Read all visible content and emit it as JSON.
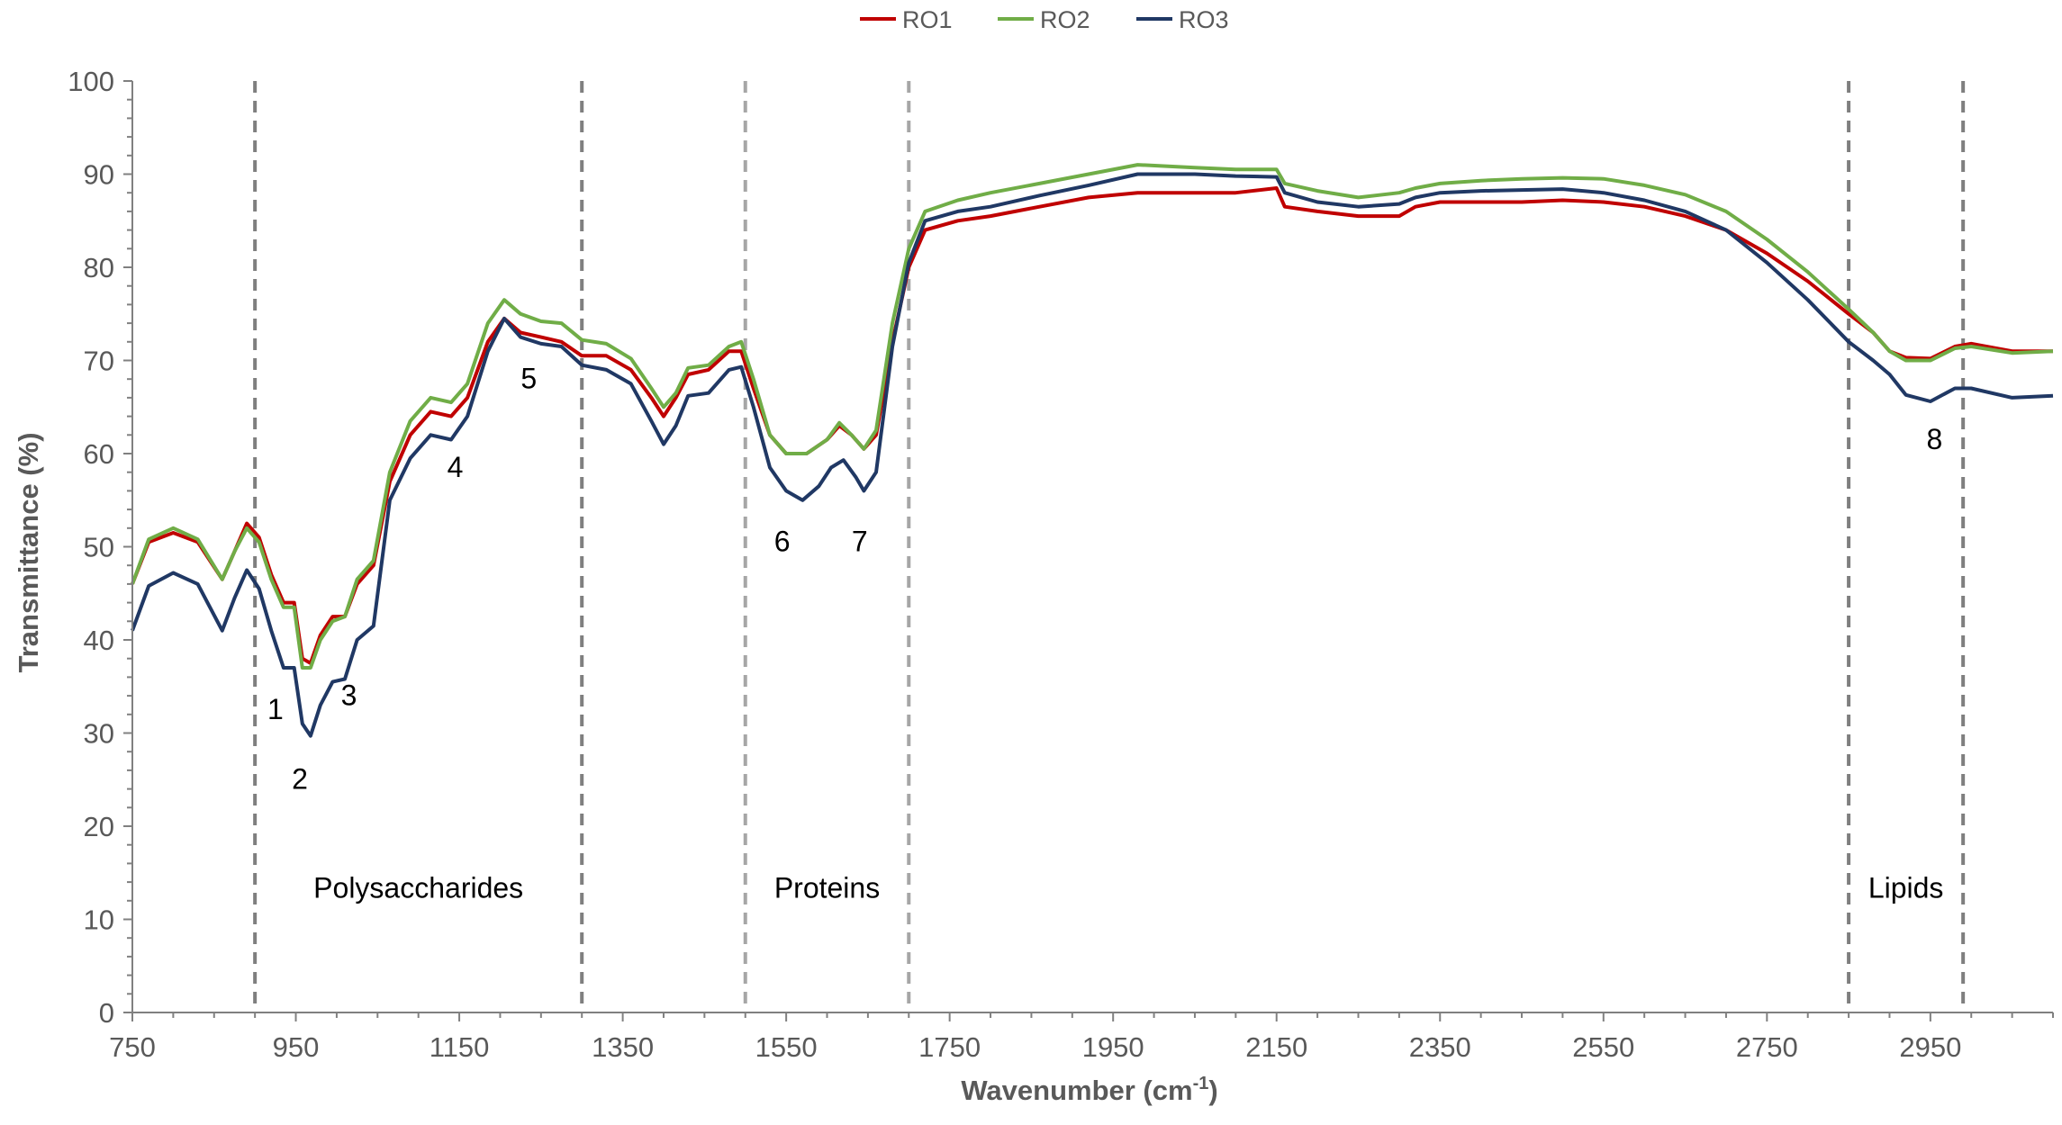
{
  "chart_data": {
    "type": "line",
    "title": "",
    "xlabel": "Wavenumber (cm",
    "xlabel_sup": "-1",
    "xlabel_close": ")",
    "ylabel": "Transmittance (%)",
    "xlim": [
      750,
      3100
    ],
    "ylim": [
      0,
      100
    ],
    "x_ticks": [
      750,
      950,
      1150,
      1350,
      1550,
      1750,
      1950,
      2150,
      2350,
      2550,
      2750,
      2950
    ],
    "y_ticks": [
      0,
      10,
      20,
      30,
      40,
      50,
      60,
      70,
      80,
      90,
      100
    ],
    "grid": false,
    "legend_position": "top-center",
    "series": [
      {
        "name": "RO1",
        "color": "#c00000",
        "points": [
          [
            750,
            46
          ],
          [
            770,
            50.5
          ],
          [
            800,
            51.5
          ],
          [
            830,
            50.5
          ],
          [
            860,
            46.5
          ],
          [
            875,
            49.5
          ],
          [
            890,
            52.5
          ],
          [
            905,
            51
          ],
          [
            920,
            47
          ],
          [
            935,
            44
          ],
          [
            948,
            44
          ],
          [
            958,
            38
          ],
          [
            968,
            37.5
          ],
          [
            980,
            40.5
          ],
          [
            995,
            42.5
          ],
          [
            1010,
            42.5
          ],
          [
            1025,
            46
          ],
          [
            1045,
            48
          ],
          [
            1065,
            57
          ],
          [
            1090,
            62
          ],
          [
            1115,
            64.5
          ],
          [
            1140,
            64
          ],
          [
            1160,
            66
          ],
          [
            1185,
            72
          ],
          [
            1205,
            74.5
          ],
          [
            1225,
            73
          ],
          [
            1250,
            72.5
          ],
          [
            1275,
            72
          ],
          [
            1300,
            70.5
          ],
          [
            1330,
            70.5
          ],
          [
            1360,
            69
          ],
          [
            1385,
            66
          ],
          [
            1400,
            64
          ],
          [
            1415,
            66
          ],
          [
            1430,
            68.5
          ],
          [
            1455,
            69
          ],
          [
            1480,
            71
          ],
          [
            1495,
            71
          ],
          [
            1510,
            67
          ],
          [
            1530,
            62
          ],
          [
            1550,
            60
          ],
          [
            1575,
            60
          ],
          [
            1600,
            61.5
          ],
          [
            1615,
            63
          ],
          [
            1630,
            62
          ],
          [
            1645,
            60.5
          ],
          [
            1660,
            62
          ],
          [
            1680,
            72
          ],
          [
            1700,
            80
          ],
          [
            1720,
            84
          ],
          [
            1760,
            85
          ],
          [
            1800,
            85.5
          ],
          [
            1860,
            86.5
          ],
          [
            1920,
            87.5
          ],
          [
            1980,
            88
          ],
          [
            2050,
            88
          ],
          [
            2100,
            88
          ],
          [
            2150,
            88.5
          ],
          [
            2160,
            86.5
          ],
          [
            2200,
            86
          ],
          [
            2250,
            85.5
          ],
          [
            2300,
            85.5
          ],
          [
            2320,
            86.5
          ],
          [
            2350,
            87
          ],
          [
            2400,
            87
          ],
          [
            2450,
            87
          ],
          [
            2500,
            87.2
          ],
          [
            2550,
            87
          ],
          [
            2600,
            86.5
          ],
          [
            2650,
            85.5
          ],
          [
            2700,
            84
          ],
          [
            2750,
            81.5
          ],
          [
            2800,
            78.5
          ],
          [
            2850,
            75
          ],
          [
            2880,
            73
          ],
          [
            2900,
            71
          ],
          [
            2920,
            70.3
          ],
          [
            2950,
            70.2
          ],
          [
            2980,
            71.5
          ],
          [
            3000,
            71.8
          ],
          [
            3050,
            71
          ],
          [
            3100,
            71
          ]
        ]
      },
      {
        "name": "RO2",
        "color": "#70ad47",
        "points": [
          [
            750,
            46
          ],
          [
            770,
            50.8
          ],
          [
            800,
            52
          ],
          [
            830,
            50.8
          ],
          [
            860,
            46.5
          ],
          [
            875,
            49.5
          ],
          [
            890,
            52
          ],
          [
            905,
            50.5
          ],
          [
            920,
            46.5
          ],
          [
            935,
            43.5
          ],
          [
            948,
            43.5
          ],
          [
            958,
            37
          ],
          [
            968,
            37
          ],
          [
            980,
            40
          ],
          [
            995,
            42
          ],
          [
            1010,
            42.5
          ],
          [
            1025,
            46.5
          ],
          [
            1045,
            48.5
          ],
          [
            1065,
            58
          ],
          [
            1090,
            63.5
          ],
          [
            1115,
            66
          ],
          [
            1140,
            65.5
          ],
          [
            1160,
            67.5
          ],
          [
            1185,
            74
          ],
          [
            1205,
            76.5
          ],
          [
            1225,
            75
          ],
          [
            1250,
            74.2
          ],
          [
            1275,
            74
          ],
          [
            1300,
            72.2
          ],
          [
            1330,
            71.8
          ],
          [
            1360,
            70.2
          ],
          [
            1385,
            67
          ],
          [
            1400,
            65
          ],
          [
            1415,
            66.5
          ],
          [
            1430,
            69.2
          ],
          [
            1455,
            69.5
          ],
          [
            1480,
            71.5
          ],
          [
            1495,
            72
          ],
          [
            1510,
            68
          ],
          [
            1530,
            62
          ],
          [
            1550,
            60
          ],
          [
            1575,
            60
          ],
          [
            1600,
            61.5
          ],
          [
            1615,
            63.3
          ],
          [
            1630,
            62
          ],
          [
            1645,
            60.5
          ],
          [
            1660,
            62.5
          ],
          [
            1680,
            74
          ],
          [
            1700,
            82
          ],
          [
            1720,
            86
          ],
          [
            1760,
            87.2
          ],
          [
            1800,
            88
          ],
          [
            1860,
            89
          ],
          [
            1920,
            90
          ],
          [
            1980,
            91
          ],
          [
            2050,
            90.7
          ],
          [
            2100,
            90.5
          ],
          [
            2150,
            90.5
          ],
          [
            2160,
            89
          ],
          [
            2200,
            88.2
          ],
          [
            2250,
            87.5
          ],
          [
            2300,
            88
          ],
          [
            2320,
            88.5
          ],
          [
            2350,
            89
          ],
          [
            2400,
            89.3
          ],
          [
            2450,
            89.5
          ],
          [
            2500,
            89.6
          ],
          [
            2550,
            89.5
          ],
          [
            2600,
            88.8
          ],
          [
            2650,
            87.8
          ],
          [
            2700,
            86
          ],
          [
            2750,
            83
          ],
          [
            2800,
            79.5
          ],
          [
            2850,
            75.5
          ],
          [
            2880,
            73
          ],
          [
            2900,
            71
          ],
          [
            2920,
            70
          ],
          [
            2950,
            70
          ],
          [
            2980,
            71.3
          ],
          [
            3000,
            71.5
          ],
          [
            3050,
            70.8
          ],
          [
            3100,
            71
          ]
        ]
      },
      {
        "name": "RO3",
        "color": "#203864",
        "points": [
          [
            750,
            41
          ],
          [
            770,
            45.8
          ],
          [
            800,
            47.2
          ],
          [
            830,
            46
          ],
          [
            860,
            41
          ],
          [
            875,
            44.5
          ],
          [
            890,
            47.5
          ],
          [
            905,
            45.5
          ],
          [
            920,
            41
          ],
          [
            935,
            37
          ],
          [
            948,
            37
          ],
          [
            958,
            31
          ],
          [
            968,
            29.7
          ],
          [
            980,
            33
          ],
          [
            995,
            35.5
          ],
          [
            1010,
            35.8
          ],
          [
            1025,
            40
          ],
          [
            1045,
            41.5
          ],
          [
            1065,
            55
          ],
          [
            1090,
            59.5
          ],
          [
            1115,
            62
          ],
          [
            1140,
            61.5
          ],
          [
            1160,
            64
          ],
          [
            1185,
            71
          ],
          [
            1205,
            74.5
          ],
          [
            1225,
            72.5
          ],
          [
            1250,
            71.8
          ],
          [
            1275,
            71.5
          ],
          [
            1300,
            69.5
          ],
          [
            1330,
            69
          ],
          [
            1360,
            67.5
          ],
          [
            1385,
            63.5
          ],
          [
            1400,
            61
          ],
          [
            1415,
            63
          ],
          [
            1430,
            66.2
          ],
          [
            1455,
            66.5
          ],
          [
            1480,
            69
          ],
          [
            1495,
            69.3
          ],
          [
            1510,
            65
          ],
          [
            1530,
            58.5
          ],
          [
            1550,
            56
          ],
          [
            1570,
            55
          ],
          [
            1590,
            56.5
          ],
          [
            1605,
            58.5
          ],
          [
            1620,
            59.3
          ],
          [
            1635,
            57.5
          ],
          [
            1645,
            56
          ],
          [
            1660,
            58
          ],
          [
            1680,
            71.5
          ],
          [
            1700,
            80.5
          ],
          [
            1720,
            85
          ],
          [
            1760,
            86
          ],
          [
            1800,
            86.5
          ],
          [
            1860,
            87.7
          ],
          [
            1920,
            88.8
          ],
          [
            1980,
            90
          ],
          [
            2050,
            90
          ],
          [
            2100,
            89.8
          ],
          [
            2150,
            89.7
          ],
          [
            2160,
            88
          ],
          [
            2200,
            87
          ],
          [
            2250,
            86.5
          ],
          [
            2300,
            86.8
          ],
          [
            2320,
            87.5
          ],
          [
            2350,
            88
          ],
          [
            2400,
            88.2
          ],
          [
            2450,
            88.3
          ],
          [
            2500,
            88.4
          ],
          [
            2550,
            88
          ],
          [
            2600,
            87.2
          ],
          [
            2650,
            86
          ],
          [
            2700,
            84
          ],
          [
            2750,
            80.5
          ],
          [
            2800,
            76.5
          ],
          [
            2850,
            72
          ],
          [
            2880,
            70
          ],
          [
            2900,
            68.5
          ],
          [
            2920,
            66.3
          ],
          [
            2950,
            65.6
          ],
          [
            2980,
            67
          ],
          [
            3000,
            67
          ],
          [
            3050,
            66
          ],
          [
            3100,
            66.2
          ]
        ]
      }
    ],
    "vertical_lines": [
      {
        "x": 900,
        "color": "#7f7f7f"
      },
      {
        "x": 1300,
        "color": "#7f7f7f"
      },
      {
        "x": 1500,
        "color": "#a6a6a6"
      },
      {
        "x": 1700,
        "color": "#a6a6a6"
      },
      {
        "x": 2850,
        "color": "#7f7f7f"
      },
      {
        "x": 2990,
        "color": "#7f7f7f"
      }
    ],
    "region_labels": [
      {
        "text": "Polysaccharides",
        "x": 1100,
        "y": 12.3
      },
      {
        "text": "Proteins",
        "x": 1600,
        "y": 12.3
      },
      {
        "text": "Lipids",
        "x": 2920,
        "y": 12.3
      }
    ],
    "peak_labels": [
      {
        "text": "1",
        "x": 925,
        "y": 31.5
      },
      {
        "text": "2",
        "x": 955,
        "y": 24
      },
      {
        "text": "3",
        "x": 1015,
        "y": 33
      },
      {
        "text": "4",
        "x": 1145,
        "y": 57.5
      },
      {
        "text": "5",
        "x": 1235,
        "y": 67
      },
      {
        "text": "6",
        "x": 1545,
        "y": 49.5
      },
      {
        "text": "7",
        "x": 1640,
        "y": 49.5
      },
      {
        "text": "8",
        "x": 2955,
        "y": 60.5
      }
    ]
  }
}
